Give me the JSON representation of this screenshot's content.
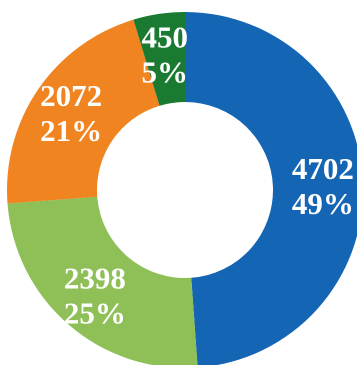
{
  "chart_data": {
    "type": "pie",
    "donut": true,
    "title": "",
    "legend": "none",
    "slices": [
      {
        "value": 4702,
        "percent": "49%",
        "color": "#1565b5"
      },
      {
        "value": 2398,
        "percent": "25%",
        "color": "#8fc058"
      },
      {
        "value": 2072,
        "percent": "21%",
        "color": "#ef8420"
      },
      {
        "value": 450,
        "percent": "5%",
        "color": "#1b7a32"
      }
    ]
  }
}
